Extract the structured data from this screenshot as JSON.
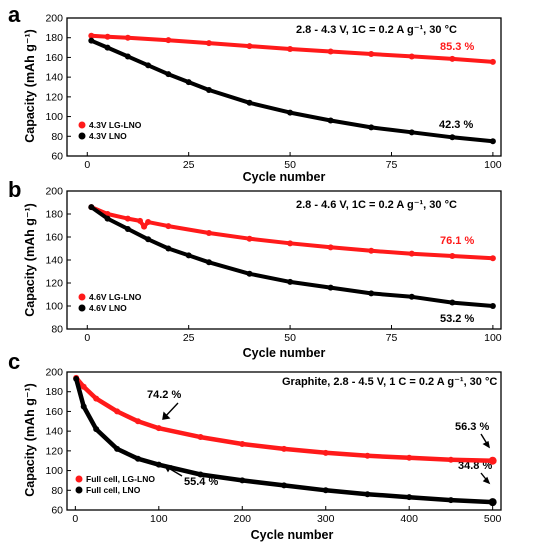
{
  "chart_data": [
    {
      "panel": "a",
      "type": "scatter",
      "condition": "2.8 - 4.3 V, 1C = 0.2 A g⁻¹, 30 °C",
      "xlabel": "Cycle number",
      "ylabel": "Capacity (mAh g⁻¹)",
      "xlim": [
        -5,
        102
      ],
      "ylim": [
        60,
        200
      ],
      "xticks": [
        0,
        25,
        50,
        75,
        100
      ],
      "yticks": [
        60,
        80,
        100,
        120,
        140,
        160,
        180,
        200
      ],
      "legend_position": "bottom-left",
      "series": [
        {
          "name": "4.3V LG-LNO",
          "color": "#ff1a1a",
          "x": [
            1,
            5,
            10,
            20,
            30,
            40,
            50,
            60,
            70,
            80,
            90,
            100
          ],
          "y": [
            182,
            181,
            180,
            177.5,
            174.5,
            171.5,
            168.5,
            166,
            163.5,
            161,
            158.5,
            155.5
          ]
        },
        {
          "name": "4.3V LNO",
          "color": "#000000",
          "x": [
            1,
            5,
            10,
            15,
            20,
            25,
            30,
            40,
            50,
            60,
            70,
            80,
            90,
            100
          ],
          "y": [
            177,
            170,
            161,
            152,
            143,
            135,
            127,
            114,
            104,
            96,
            89,
            84,
            79,
            75
          ]
        }
      ],
      "annotations": [
        {
          "text": "85.3 %",
          "color": "#ff1a1a"
        },
        {
          "text": "42.3 %",
          "color": "#000000"
        }
      ]
    },
    {
      "panel": "b",
      "type": "scatter",
      "condition": "2.8 - 4.6 V, 1C = 0.2 A g⁻¹, 30 °C",
      "xlabel": "Cycle number",
      "ylabel": "Capacity (mAh g⁻¹)",
      "xlim": [
        -5,
        102
      ],
      "ylim": [
        80,
        200
      ],
      "xticks": [
        0,
        25,
        50,
        75,
        100
      ],
      "yticks": [
        80,
        100,
        120,
        140,
        160,
        180,
        200
      ],
      "legend_position": "bottom-left",
      "series": [
        {
          "name": "4.6V LG-LNO",
          "color": "#ff1a1a",
          "x": [
            1,
            5,
            10,
            13,
            14,
            15,
            20,
            30,
            40,
            50,
            60,
            70,
            80,
            90,
            100
          ],
          "y": [
            186,
            180,
            176,
            174,
            169,
            173,
            169.5,
            163.5,
            158.5,
            154.5,
            151,
            148,
            145.5,
            143.5,
            141.5
          ]
        },
        {
          "name": "4.6V LNO",
          "color": "#000000",
          "x": [
            1,
            5,
            10,
            15,
            20,
            25,
            30,
            40,
            50,
            60,
            70,
            80,
            90,
            100
          ],
          "y": [
            186,
            176,
            167,
            158,
            150,
            144,
            138,
            128,
            121,
            116,
            111,
            108,
            103,
            100
          ]
        }
      ],
      "annotations": [
        {
          "text": "76.1 %",
          "color": "#ff1a1a"
        },
        {
          "text": "53.2 %",
          "color": "#000000"
        }
      ]
    },
    {
      "panel": "c",
      "type": "line",
      "condition": "Graphite, 2.8 - 4.5 V, 1 C = 0.2 A g⁻¹, 30 °C",
      "xlabel": "Cycle number",
      "ylabel": "Capacity (mAh g⁻¹)",
      "xlim": [
        -10,
        510
      ],
      "ylim": [
        60,
        200
      ],
      "xticks": [
        0,
        100,
        200,
        300,
        400,
        500
      ],
      "yticks": [
        60,
        80,
        100,
        120,
        140,
        160,
        180,
        200
      ],
      "legend_position": "bottom-left",
      "series": [
        {
          "name": "Full cell, LG-LNO",
          "color": "#ff1a1a",
          "x": [
            1,
            10,
            25,
            50,
            75,
            100,
            150,
            200,
            250,
            300,
            350,
            400,
            450,
            500
          ],
          "y": [
            194,
            185,
            173,
            160,
            150,
            143,
            134,
            127,
            122,
            118,
            115,
            113,
            111,
            110
          ]
        },
        {
          "name": "Full cell, LNO",
          "color": "#000000",
          "x": [
            1,
            10,
            25,
            50,
            75,
            100,
            150,
            200,
            250,
            300,
            350,
            400,
            450,
            500
          ],
          "y": [
            193,
            165,
            142,
            122,
            112,
            106,
            96,
            90,
            85,
            80,
            76,
            73,
            70,
            68
          ]
        }
      ],
      "annotations": [
        {
          "text": "74.2 %",
          "color": "#000000"
        },
        {
          "text": "55.4 %",
          "color": "#000000"
        },
        {
          "text": "56.3 %",
          "color": "#000000"
        },
        {
          "text": "34.8 %",
          "color": "#000000"
        }
      ]
    }
  ]
}
